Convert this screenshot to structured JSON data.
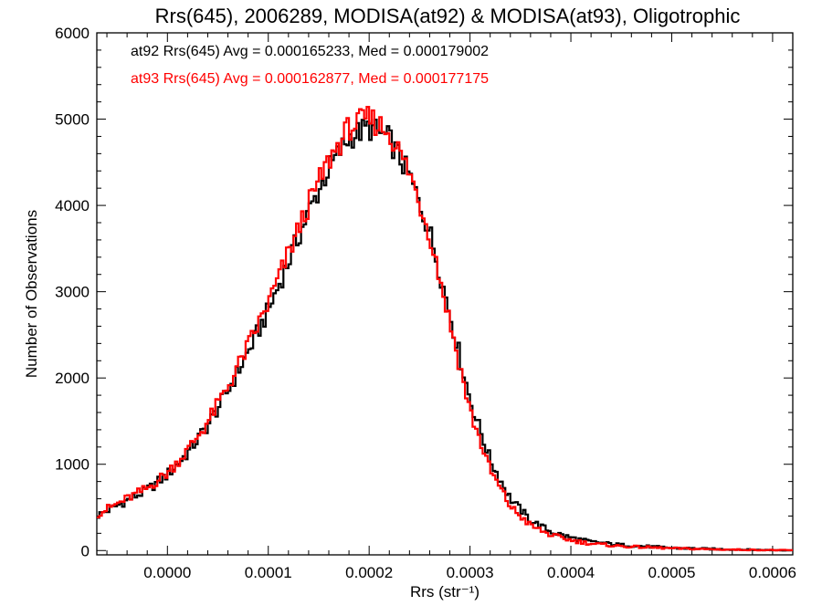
{
  "chart_data": {
    "type": "histogram",
    "title": "Rrs(645), 2006289, MODISA(at92) & MODISA(at93), Oligotrophic",
    "xlabel": "Rrs (str⁻¹)",
    "ylabel": "Number of Observations",
    "xlim": [
      -7e-05,
      0.00062
    ],
    "ylim": [
      -50,
      6000
    ],
    "x_tick_labels": [
      "0.0000",
      "0.0001",
      "0.0002",
      "0.0003",
      "0.0004",
      "0.0005",
      "0.0006"
    ],
    "x_ticks": [
      0.0,
      0.0001,
      0.0002,
      0.0003,
      0.0004,
      0.0005,
      0.0006
    ],
    "y_tick_labels": [
      "0",
      "1000",
      "2000",
      "3000",
      "4000",
      "5000",
      "6000"
    ],
    "y_ticks": [
      0,
      1000,
      2000,
      3000,
      4000,
      5000,
      6000
    ],
    "legend_position": "top-left",
    "series": [
      {
        "name": "at92",
        "legend": "at92 Rrs(645) Avg = 0.000165233, Med = 0.000179002",
        "color": "#000000",
        "profile": [
          [
            -7e-05,
            400
          ],
          [
            -5e-05,
            520
          ],
          [
            -2e-05,
            700
          ],
          [
            0.0,
            880
          ],
          [
            2e-05,
            1130
          ],
          [
            4e-05,
            1450
          ],
          [
            6e-05,
            1850
          ],
          [
            8e-05,
            2300
          ],
          [
            0.0001,
            2780
          ],
          [
            0.00012,
            3350
          ],
          [
            0.00014,
            3920
          ],
          [
            0.00016,
            4420
          ],
          [
            0.00018,
            4790
          ],
          [
            0.0002,
            4900
          ],
          [
            0.00022,
            4770
          ],
          [
            0.00024,
            4340
          ],
          [
            0.00026,
            3700
          ],
          [
            0.00028,
            2750
          ],
          [
            0.0003,
            1750
          ],
          [
            0.00032,
            1050
          ],
          [
            0.00034,
            600
          ],
          [
            0.00036,
            350
          ],
          [
            0.00038,
            220
          ],
          [
            0.0004,
            150
          ],
          [
            0.00042,
            100
          ],
          [
            0.00045,
            65
          ],
          [
            0.0005,
            30
          ],
          [
            0.00055,
            15
          ],
          [
            0.0006,
            5
          ],
          [
            0.00062,
            3
          ]
        ]
      },
      {
        "name": "at93",
        "legend": "at93 Rrs(645) Avg = 0.000162877, Med = 0.000177175",
        "color": "#ff0000",
        "profile": [
          [
            -7e-05,
            420
          ],
          [
            -5e-05,
            540
          ],
          [
            -2e-05,
            720
          ],
          [
            0.0,
            900
          ],
          [
            2e-05,
            1160
          ],
          [
            4e-05,
            1490
          ],
          [
            6e-05,
            1900
          ],
          [
            8e-05,
            2370
          ],
          [
            0.0001,
            2860
          ],
          [
            0.00012,
            3440
          ],
          [
            0.00014,
            4010
          ],
          [
            0.00016,
            4520
          ],
          [
            0.00018,
            4900
          ],
          [
            0.0002,
            5010
          ],
          [
            0.00022,
            4850
          ],
          [
            0.00024,
            4380
          ],
          [
            0.00026,
            3680
          ],
          [
            0.00028,
            2650
          ],
          [
            0.0003,
            1620
          ],
          [
            0.00032,
            930
          ],
          [
            0.00034,
            510
          ],
          [
            0.00036,
            290
          ],
          [
            0.00038,
            180
          ],
          [
            0.0004,
            120
          ],
          [
            0.00042,
            80
          ],
          [
            0.00045,
            50
          ],
          [
            0.0005,
            25
          ],
          [
            0.00055,
            12
          ],
          [
            0.0006,
            5
          ],
          [
            0.00062,
            3
          ]
        ]
      }
    ]
  }
}
